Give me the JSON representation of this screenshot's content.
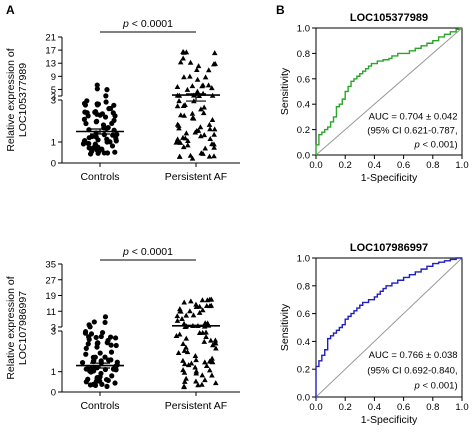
{
  "panels": {
    "a": "A",
    "b": "B"
  },
  "chart_data": [
    {
      "type": "scatter",
      "subtype": "dot-plot",
      "ylabel_lines": [
        "Relative expression of",
        "LOC105377989"
      ],
      "categories": [
        "Controls",
        "Persistent AF"
      ],
      "significance": {
        "italic": "p",
        "rest": " < 0.0001"
      },
      "y_ticks_lower": [
        "0",
        "1",
        "3"
      ],
      "y_ticks_upper": [
        "3",
        "5",
        "9",
        "13",
        "17",
        "21"
      ],
      "y_break": true,
      "lower_range": [
        0,
        3
      ],
      "upper_range": [
        3,
        21
      ],
      "series": [
        {
          "mean": 1.5,
          "sem": 0.12
        },
        {
          "mean": 3.3,
          "sem": 0.35
        }
      ]
    },
    {
      "type": "line",
      "title": "LOC105377989",
      "xlabel": "1-Specificity",
      "ylabel": "Sensitivity",
      "xlim": [
        0,
        1
      ],
      "ylim": [
        0,
        1
      ],
      "x_ticks": [
        "0.0",
        "0.2",
        "0.4",
        "0.6",
        "0.8",
        "1.0"
      ],
      "y_ticks": [
        "0.0",
        "0.2",
        "0.4",
        "0.6",
        "0.8",
        "1.0"
      ],
      "color": "#2aa52a",
      "reference_line_color": "#999999",
      "annotation": [
        "AUC = 0.704 ± 0.042",
        "(95% CI 0.621-0.787,"
      ],
      "annotation_p": {
        "italic": "p",
        "rest": " < 0.001)"
      },
      "curve": [
        [
          0,
          0
        ],
        [
          0,
          0.08
        ],
        [
          0.02,
          0.1
        ],
        [
          0.02,
          0.16
        ],
        [
          0.04,
          0.18
        ],
        [
          0.06,
          0.2
        ],
        [
          0.08,
          0.22
        ],
        [
          0.1,
          0.26
        ],
        [
          0.12,
          0.3
        ],
        [
          0.14,
          0.34
        ],
        [
          0.14,
          0.38
        ],
        [
          0.16,
          0.4
        ],
        [
          0.18,
          0.44
        ],
        [
          0.2,
          0.46
        ],
        [
          0.2,
          0.5
        ],
        [
          0.22,
          0.54
        ],
        [
          0.24,
          0.58
        ],
        [
          0.26,
          0.6
        ],
        [
          0.28,
          0.62
        ],
        [
          0.3,
          0.64
        ],
        [
          0.32,
          0.66
        ],
        [
          0.34,
          0.68
        ],
        [
          0.36,
          0.7
        ],
        [
          0.38,
          0.72
        ],
        [
          0.42,
          0.74
        ],
        [
          0.46,
          0.75
        ],
        [
          0.5,
          0.76
        ],
        [
          0.52,
          0.78
        ],
        [
          0.56,
          0.8
        ],
        [
          0.6,
          0.8
        ],
        [
          0.64,
          0.82
        ],
        [
          0.68,
          0.84
        ],
        [
          0.72,
          0.86
        ],
        [
          0.76,
          0.88
        ],
        [
          0.8,
          0.9
        ],
        [
          0.84,
          0.93
        ],
        [
          0.88,
          0.95
        ],
        [
          0.92,
          0.97
        ],
        [
          0.96,
          0.99
        ],
        [
          0.98,
          1.0
        ],
        [
          1.0,
          1.0
        ]
      ]
    },
    {
      "type": "scatter",
      "subtype": "dot-plot",
      "ylabel_lines": [
        "Relative expression of",
        "LOC107986997"
      ],
      "categories": [
        "Controls",
        "Persistent AF"
      ],
      "significance": {
        "italic": "p",
        "rest": " < 0.0001"
      },
      "y_ticks_lower": [
        "0",
        "1",
        "3"
      ],
      "y_ticks_upper": [
        "3",
        "11",
        "19",
        "27",
        "35"
      ],
      "y_break": true,
      "lower_range": [
        0,
        3
      ],
      "upper_range": [
        3,
        35
      ],
      "series": [
        {
          "mean": 1.3,
          "sem": 0.12
        },
        {
          "mean": 3.6,
          "sem": 0.3
        }
      ]
    },
    {
      "type": "line",
      "title": "LOC107986997",
      "xlabel": "1-Specificity",
      "ylabel": "Sensitivity",
      "xlim": [
        0,
        1
      ],
      "ylim": [
        0,
        1
      ],
      "x_ticks": [
        "0.0",
        "0.2",
        "0.4",
        "0.6",
        "0.8",
        "1.0"
      ],
      "y_ticks": [
        "0.0",
        "0.2",
        "0.4",
        "0.6",
        "0.8",
        "1.0"
      ],
      "color": "#1f1fbf",
      "reference_line_color": "#999999",
      "annotation": [
        "AUC = 0.766 ± 0.038",
        "(95% CI 0.692-0.840,"
      ],
      "annotation_p": {
        "italic": "p",
        "rest": " < 0.001)"
      },
      "curve": [
        [
          0,
          0
        ],
        [
          0,
          0.22
        ],
        [
          0.02,
          0.26
        ],
        [
          0.04,
          0.3
        ],
        [
          0.06,
          0.34
        ],
        [
          0.08,
          0.38
        ],
        [
          0.08,
          0.42
        ],
        [
          0.1,
          0.44
        ],
        [
          0.12,
          0.46
        ],
        [
          0.14,
          0.48
        ],
        [
          0.16,
          0.5
        ],
        [
          0.18,
          0.52
        ],
        [
          0.2,
          0.56
        ],
        [
          0.22,
          0.58
        ],
        [
          0.24,
          0.6
        ],
        [
          0.26,
          0.62
        ],
        [
          0.28,
          0.64
        ],
        [
          0.3,
          0.66
        ],
        [
          0.32,
          0.68
        ],
        [
          0.36,
          0.7
        ],
        [
          0.4,
          0.72
        ],
        [
          0.42,
          0.74
        ],
        [
          0.44,
          0.76
        ],
        [
          0.46,
          0.78
        ],
        [
          0.48,
          0.8
        ],
        [
          0.52,
          0.82
        ],
        [
          0.56,
          0.84
        ],
        [
          0.6,
          0.86
        ],
        [
          0.64,
          0.88
        ],
        [
          0.68,
          0.9
        ],
        [
          0.72,
          0.92
        ],
        [
          0.76,
          0.94
        ],
        [
          0.8,
          0.96
        ],
        [
          0.84,
          0.97
        ],
        [
          0.88,
          0.98
        ],
        [
          0.92,
          0.99
        ],
        [
          0.96,
          1.0
        ],
        [
          1.0,
          1.0
        ]
      ]
    }
  ]
}
